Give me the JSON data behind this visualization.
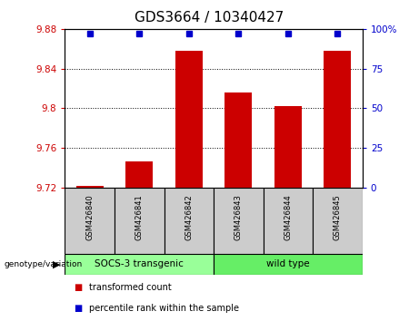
{
  "title": "GDS3664 / 10340427",
  "samples": [
    "GSM426840",
    "GSM426841",
    "GSM426842",
    "GSM426843",
    "GSM426844",
    "GSM426845"
  ],
  "bar_values": [
    9.722,
    9.747,
    9.858,
    9.816,
    9.802,
    9.858
  ],
  "percentile_values": [
    97,
    97,
    97,
    97,
    97,
    97
  ],
  "ymin": 9.72,
  "ymax": 9.88,
  "yticks": [
    9.72,
    9.76,
    9.8,
    9.84,
    9.88
  ],
  "ytick_labels": [
    "9.72",
    "9.76",
    "9.8",
    "9.84",
    "9.88"
  ],
  "y2min": 0,
  "y2max": 100,
  "y2ticks": [
    0,
    25,
    50,
    75,
    100
  ],
  "y2tick_labels": [
    "0",
    "25",
    "50",
    "75",
    "100%"
  ],
  "bar_color": "#cc0000",
  "percentile_color": "#0000cc",
  "bar_width": 0.55,
  "groups": [
    {
      "label": "SOCS-3 transgenic",
      "start": 0,
      "end": 2,
      "color": "#99ff99"
    },
    {
      "label": "wild type",
      "start": 3,
      "end": 5,
      "color": "#66ee66"
    }
  ],
  "group_label": "genotype/variation",
  "legend_items": [
    {
      "label": "transformed count",
      "color": "#cc0000"
    },
    {
      "label": "percentile rank within the sample",
      "color": "#0000cc"
    }
  ],
  "title_fontsize": 11,
  "tick_fontsize": 7.5,
  "sample_bg_color": "#cccccc"
}
